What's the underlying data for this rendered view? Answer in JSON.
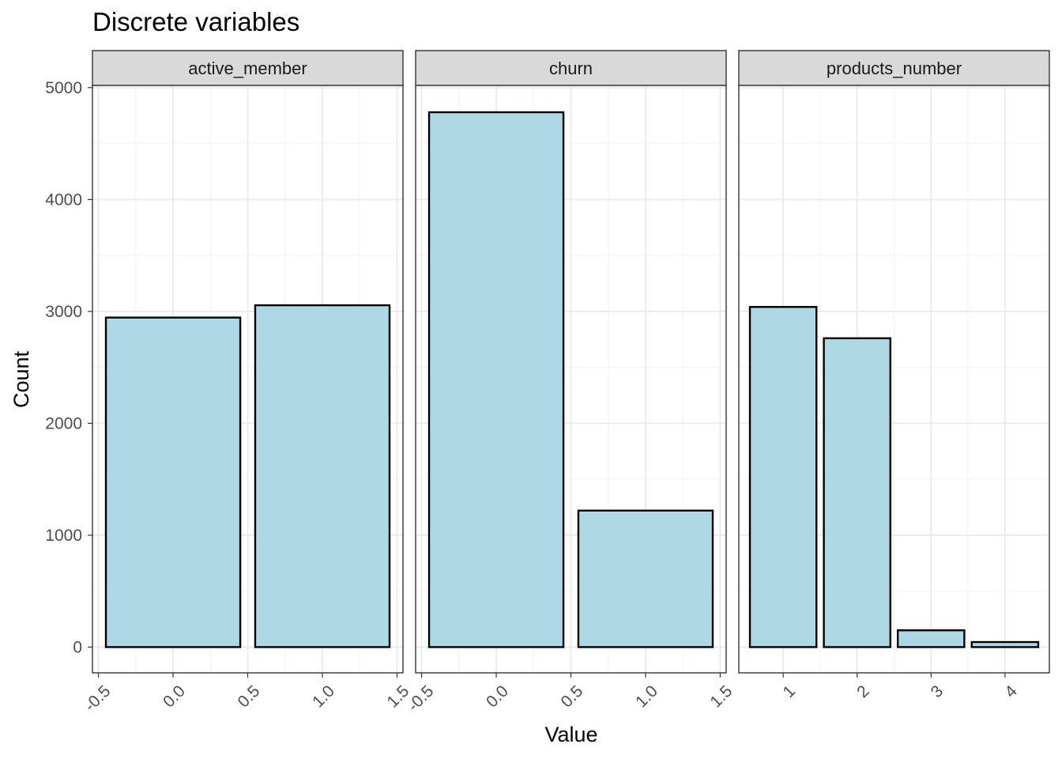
{
  "colors": {
    "bar_fill": "#ADD8E6",
    "bar_stroke": "#000000",
    "strip_fill": "#D9D9D9",
    "panel_border": "#333333",
    "grid_major": "#EBEBEB",
    "grid_minor": "#F5F5F5",
    "tick_text": "#4D4D4D"
  },
  "chart_data": {
    "type": "bar",
    "title": "Discrete variables",
    "xlabel": "Value",
    "ylabel": "Count",
    "ylim": [
      -230,
      5020
    ],
    "yticks": [
      0,
      1000,
      2000,
      3000,
      4000,
      5000
    ],
    "ytick_labels": [
      "0",
      "1000",
      "2000",
      "3000",
      "4000",
      "5000"
    ],
    "grid": true,
    "legend": "none",
    "facets": [
      {
        "name": "active_member",
        "xlim": [
          -0.54,
          1.54
        ],
        "xticks": [
          -0.5,
          0.0,
          0.5,
          1.0,
          1.5
        ],
        "xtick_labels": [
          "-0.5",
          "0.0",
          "0.5",
          "1.0",
          "1.5"
        ],
        "bar_width": 0.9,
        "x": [
          0,
          1
        ],
        "values": [
          2945,
          3055
        ]
      },
      {
        "name": "churn",
        "xlim": [
          -0.54,
          1.54
        ],
        "xticks": [
          -0.5,
          0.0,
          0.5,
          1.0,
          1.5
        ],
        "xtick_labels": [
          "-0.5",
          "0.0",
          "0.5",
          "1.0",
          "1.5"
        ],
        "bar_width": 0.9,
        "x": [
          0,
          1
        ],
        "values": [
          4780,
          1220
        ]
      },
      {
        "name": "products_number",
        "xlim": [
          0.4,
          4.6
        ],
        "xticks": [
          1,
          2,
          3,
          4
        ],
        "xtick_labels": [
          "1",
          "2",
          "3",
          "4"
        ],
        "bar_width": 0.9,
        "x": [
          1,
          2,
          3,
          4
        ],
        "values": [
          3040,
          2760,
          150,
          45
        ]
      }
    ]
  }
}
